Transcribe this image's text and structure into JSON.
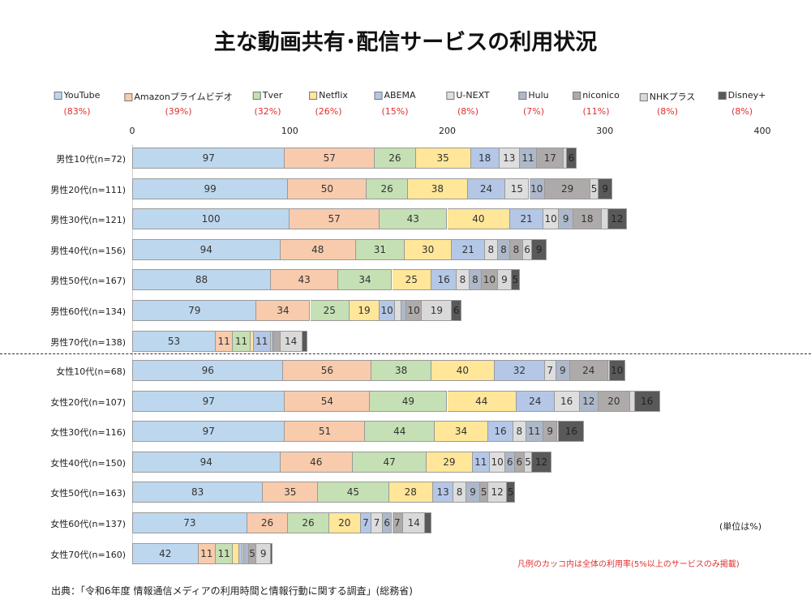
{
  "chart_data": {
    "type": "bar",
    "orientation": "horizontal",
    "stacked": true,
    "title": "主な動画共有･配信サービスの利用状況",
    "xlim": [
      0,
      400
    ],
    "xticks": [
      "0",
      "100",
      "200",
      "300",
      "400"
    ],
    "legend_placement": "top",
    "series_names": [
      "YouTube",
      "Amazonプライムビデオ",
      "Tver",
      "Netflix",
      "ABEMA",
      "U-NEXT",
      "Hulu",
      "niconico",
      "NHKプラス",
      "Disney+"
    ],
    "series_overall": [
      "(83%)",
      "(39%)",
      "(32%)",
      "(26%)",
      "(15%)",
      "(8%)",
      "(7%)",
      "(11%)",
      "(8%)",
      "(8%)"
    ],
    "colors": [
      "#bdd7ee",
      "#f8cbad",
      "#c5e0b4",
      "#ffe699",
      "#b4c7e7",
      "#dedede",
      "#adb9ca",
      "#aeaaaa",
      "#d9d9d9",
      "#595959"
    ],
    "categories": [
      "男性10代(n=72)",
      "男性20代(n=111)",
      "男性30代(n=121)",
      "男性40代(n=156)",
      "男性50代(n=167)",
      "男性60代(n=134)",
      "男性70代(n=138)",
      "女性10代(n=68)",
      "女性20代(n=107)",
      "女性30代(n=116)",
      "女性40代(n=150)",
      "女性50代(n=163)",
      "女性60代(n=137)",
      "女性70代(n=160)"
    ],
    "rows": [
      [
        97,
        57,
        26,
        35,
        18,
        13,
        11,
        17,
        2,
        6
      ],
      [
        99,
        50,
        26,
        38,
        24,
        15,
        10,
        29,
        5,
        9
      ],
      [
        100,
        57,
        43,
        40,
        21,
        10,
        9,
        18,
        4,
        12
      ],
      [
        94,
        48,
        31,
        30,
        21,
        8,
        8,
        8,
        6,
        9
      ],
      [
        88,
        43,
        34,
        25,
        16,
        8,
        8,
        10,
        9,
        5
      ],
      [
        79,
        34,
        25,
        19,
        10,
        4,
        3,
        10,
        19,
        6
      ],
      [
        53,
        11,
        11,
        2,
        11,
        1,
        1,
        4,
        14,
        3
      ],
      [
        96,
        56,
        38,
        40,
        32,
        7,
        9,
        24,
        1,
        10
      ],
      [
        97,
        54,
        49,
        44,
        24,
        16,
        12,
        20,
        3,
        16
      ],
      [
        97,
        51,
        44,
        34,
        16,
        8,
        11,
        9,
        1,
        16
      ],
      [
        94,
        46,
        47,
        29,
        11,
        10,
        6,
        6,
        5,
        12
      ],
      [
        83,
        35,
        45,
        28,
        13,
        8,
        9,
        5,
        12,
        5
      ],
      [
        73,
        26,
        26,
        20,
        7,
        7,
        6,
        7,
        14,
        4
      ],
      [
        42,
        11,
        11,
        4,
        2,
        1,
        3,
        5,
        9,
        1
      ]
    ],
    "label_min": 5
  },
  "unit_note": "(単位は%)",
  "legend_note": "凡例のカッコ内は全体の利用率(5%以上のサービスのみ掲載)",
  "source": "出典：「令和6年度 情報通信メディアの利用時間と情報行動に関する調査」(総務省)"
}
